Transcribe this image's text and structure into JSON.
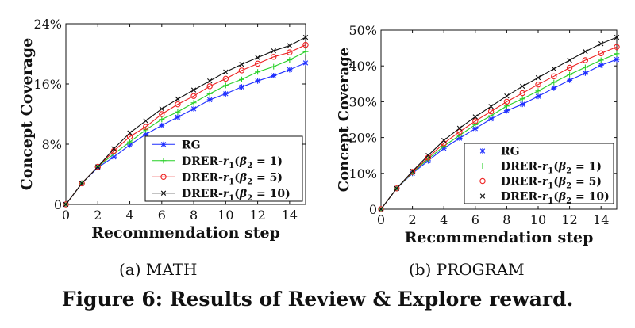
{
  "chart_data": [
    {
      "type": "line",
      "subcaption": "(a)  MATH",
      "xlabel": "Recommendation step",
      "ylabel": "Concept Coverage",
      "xlim": [
        0,
        15
      ],
      "ylim": [
        0,
        24
      ],
      "xticks": [
        0,
        2,
        4,
        6,
        8,
        10,
        12,
        14
      ],
      "xtick_labels": [
        "0",
        "2",
        "4",
        "6",
        "8",
        "10",
        "12",
        "14"
      ],
      "yticks": [
        0,
        8,
        16,
        24
      ],
      "ytick_labels": [
        "0",
        "8%",
        "16%",
        "24%"
      ],
      "grid": false,
      "legend_position": "bottom-right",
      "x": [
        0,
        1,
        2,
        3,
        4,
        5,
        6,
        7,
        8,
        9,
        10,
        11,
        12,
        13,
        14,
        15
      ],
      "series": [
        {
          "name": "RG",
          "color": "#1f2fff",
          "marker": "star",
          "values": [
            0,
            2.8,
            4.9,
            6.3,
            7.9,
            9.3,
            10.5,
            11.6,
            12.7,
            13.9,
            14.7,
            15.6,
            16.4,
            17.1,
            17.9,
            18.8
          ]
        },
        {
          "name": "DRER-r1(β2 = 1)",
          "color": "#27d027",
          "marker": "plus",
          "values": [
            0,
            2.8,
            5.0,
            6.7,
            8.3,
            9.9,
            11.3,
            12.3,
            13.5,
            14.7,
            15.8,
            16.6,
            17.6,
            18.3,
            19.2,
            20.3
          ]
        },
        {
          "name": "DRER-r1(β2 = 5)",
          "color": "#ee2222",
          "marker": "circle",
          "values": [
            0,
            2.8,
            5.0,
            7.1,
            9.0,
            10.3,
            12.0,
            13.3,
            14.4,
            15.7,
            16.7,
            17.8,
            18.7,
            19.6,
            20.2,
            21.2
          ]
        },
        {
          "name": "DRER-r1(β2 = 10)",
          "color": "#111111",
          "marker": "x",
          "values": [
            0,
            2.8,
            5.0,
            7.4,
            9.5,
            11.1,
            12.7,
            14.0,
            15.2,
            16.4,
            17.6,
            18.6,
            19.5,
            20.4,
            21.1,
            22.2
          ]
        }
      ]
    },
    {
      "type": "line",
      "subcaption": "(b)  PROGRAM",
      "xlabel": "Recommendation step",
      "ylabel": "Concept Coverage",
      "xlim": [
        0,
        15
      ],
      "ylim": [
        0,
        50
      ],
      "xticks": [
        0,
        2,
        4,
        6,
        8,
        10,
        12,
        14
      ],
      "xtick_labels": [
        "0",
        "2",
        "4",
        "6",
        "8",
        "10",
        "12",
        "14"
      ],
      "yticks": [
        0,
        10,
        20,
        30,
        40,
        50
      ],
      "ytick_labels": [
        "0",
        "10%",
        "20%",
        "30%",
        "40%",
        "50%"
      ],
      "grid": false,
      "legend_position": "bottom-right",
      "x": [
        0,
        1,
        2,
        3,
        4,
        5,
        6,
        7,
        8,
        9,
        10,
        11,
        12,
        13,
        14,
        15
      ],
      "series": [
        {
          "name": "RG",
          "color": "#1f2fff",
          "marker": "star",
          "values": [
            0,
            5.8,
            10.0,
            13.5,
            17.0,
            19.8,
            22.5,
            25.2,
            27.5,
            29.3,
            31.5,
            33.8,
            36.0,
            38.0,
            40.2,
            41.8
          ]
        },
        {
          "name": "DRER-r1(β2 = 1)",
          "color": "#27d027",
          "marker": "plus",
          "values": [
            0,
            5.8,
            10.2,
            14.0,
            17.6,
            20.6,
            23.6,
            26.1,
            28.8,
            30.8,
            33.0,
            35.4,
            37.6,
            39.6,
            41.6,
            43.4
          ]
        },
        {
          "name": "DRER-r1(β2 = 5)",
          "color": "#ee2222",
          "marker": "circle",
          "values": [
            0,
            5.8,
            10.4,
            14.4,
            18.4,
            21.6,
            24.6,
            27.3,
            30.0,
            32.4,
            34.8,
            37.1,
            39.5,
            41.6,
            43.5,
            45.3
          ]
        },
        {
          "name": "DRER-r1(β2 = 10)",
          "color": "#111111",
          "marker": "x",
          "values": [
            0,
            5.8,
            10.6,
            15.0,
            19.2,
            22.6,
            25.8,
            28.7,
            31.6,
            34.3,
            36.7,
            39.2,
            41.6,
            44.0,
            46.2,
            48.0
          ]
        }
      ]
    }
  ],
  "figure": {
    "caption": "Figure 6: Results of Review & Explore reward."
  }
}
